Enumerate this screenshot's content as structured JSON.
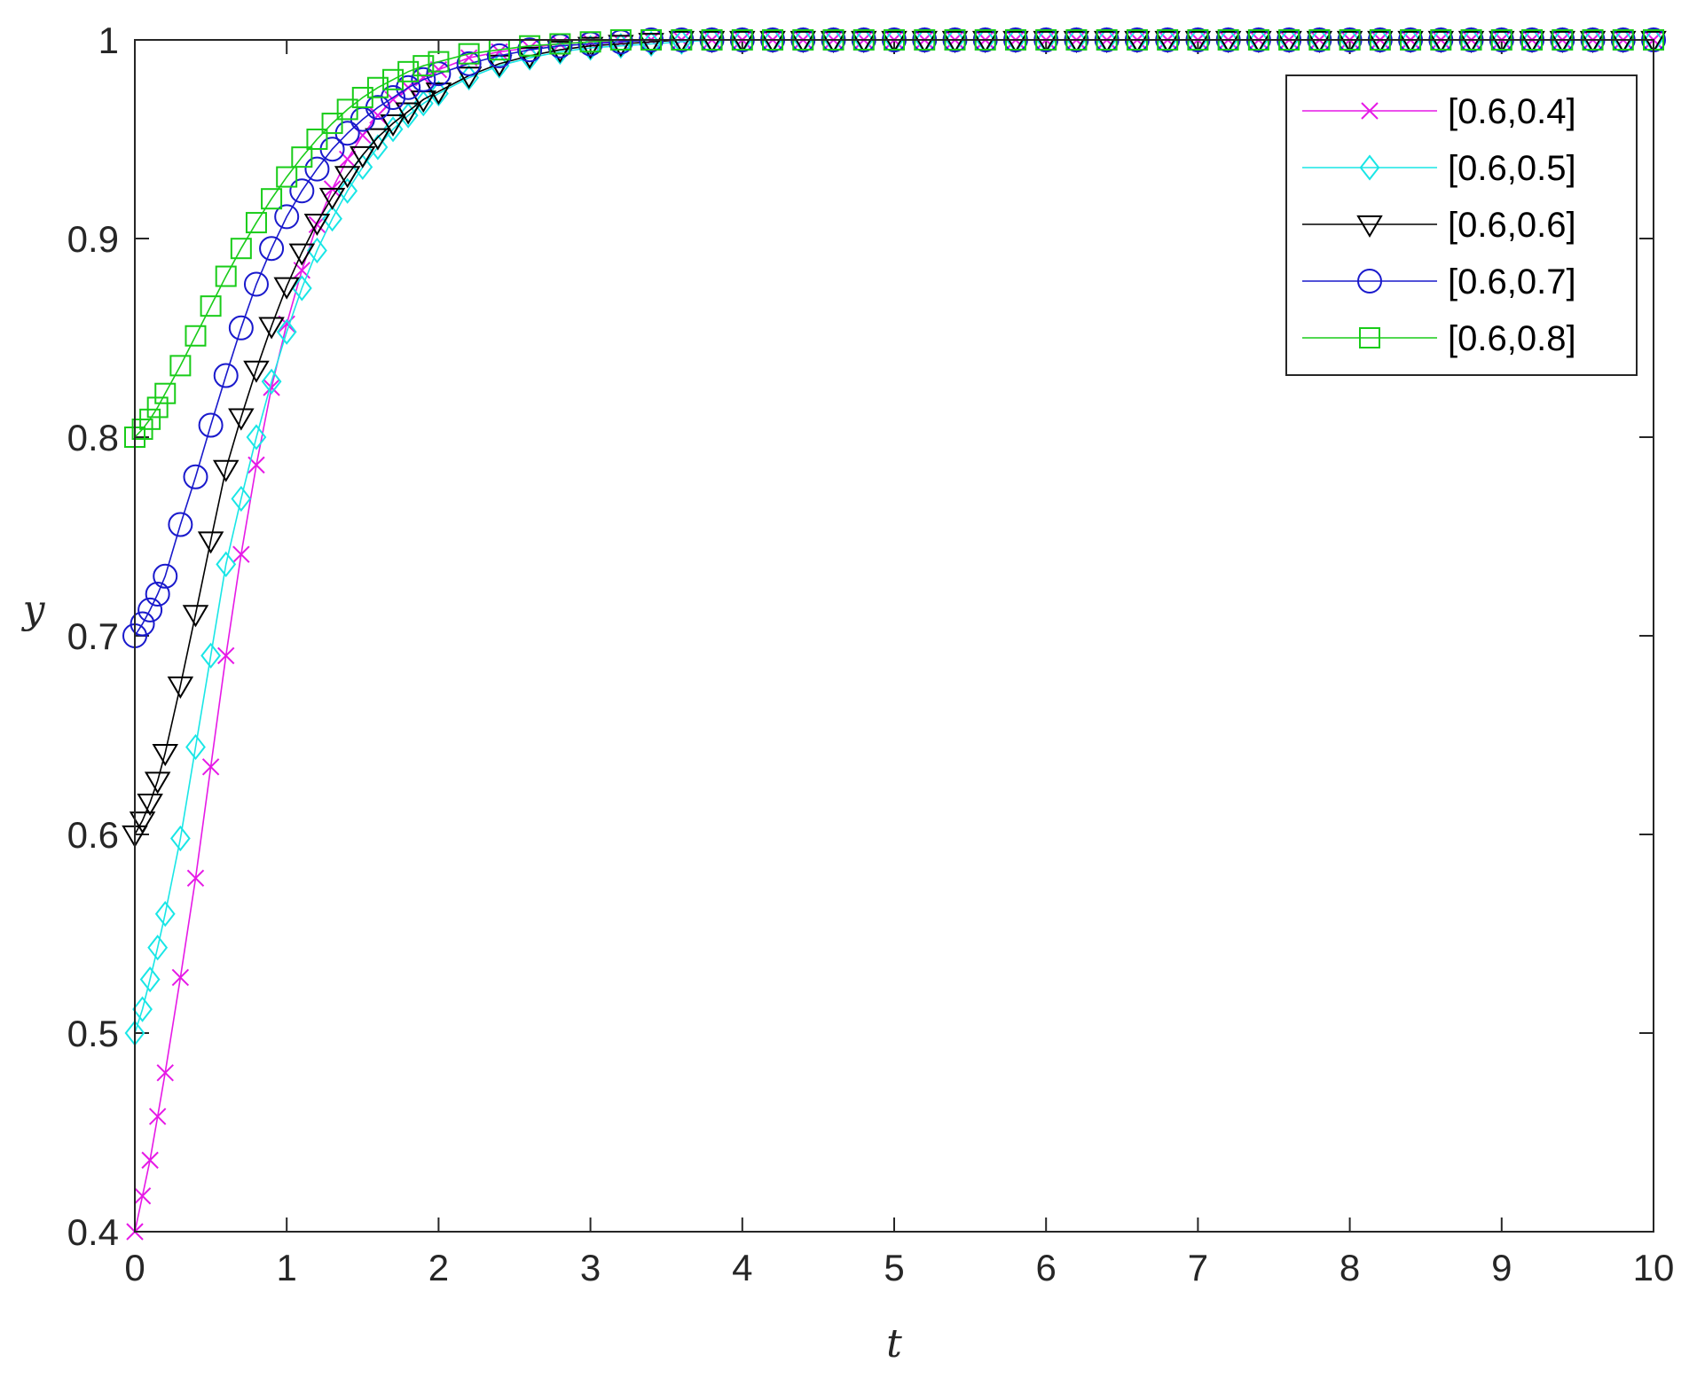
{
  "chart_data": {
    "type": "line",
    "title": "",
    "xlabel": "t",
    "ylabel": "y",
    "xlim": [
      0,
      10
    ],
    "ylim": [
      0.4,
      1
    ],
    "xticks": [
      "0",
      "1",
      "2",
      "3",
      "4",
      "5",
      "6",
      "7",
      "8",
      "9",
      "10"
    ],
    "yticks": [
      "0.4",
      "0.5",
      "0.6",
      "0.7",
      "0.8",
      "0.9",
      "1"
    ],
    "grid": false,
    "legend_position": "top-right",
    "x": [
      0,
      0.05,
      0.1,
      0.15,
      0.2,
      0.3,
      0.4,
      0.5,
      0.6,
      0.7,
      0.8,
      0.9,
      1.0,
      1.1,
      1.2,
      1.3,
      1.4,
      1.5,
      1.6,
      1.7,
      1.8,
      1.9,
      2.0,
      2.2,
      2.4,
      2.6,
      2.8,
      3.0,
      3.2,
      3.4,
      3.6,
      3.8,
      4.0,
      4.2,
      4.4,
      4.6,
      4.8,
      5.0,
      5.2,
      5.4,
      5.6,
      5.8,
      6.0,
      6.2,
      6.4,
      6.6,
      6.8,
      7.0,
      7.2,
      7.4,
      7.6,
      7.8,
      8.0,
      8.2,
      8.4,
      8.6,
      8.8,
      9.0,
      9.2,
      9.4,
      9.6,
      9.8,
      10.0
    ],
    "series": [
      {
        "name": "[0.6,0.4]",
        "color": "#e619e6",
        "marker": "x",
        "values": [
          0.4,
          0.418,
          0.436,
          0.458,
          0.48,
          0.528,
          0.578,
          0.634,
          0.69,
          0.741,
          0.786,
          0.825,
          0.857,
          0.884,
          0.907,
          0.925,
          0.94,
          0.952,
          0.962,
          0.97,
          0.976,
          0.981,
          0.985,
          0.991,
          0.994,
          0.996,
          0.998,
          0.999,
          0.999,
          1,
          1,
          1,
          1,
          1,
          1,
          1,
          1,
          1,
          1,
          1,
          1,
          1,
          1,
          1,
          1,
          1,
          1,
          1,
          1,
          1,
          1,
          1,
          1,
          1,
          1,
          1,
          1,
          1,
          1,
          1,
          1,
          1,
          1
        ]
      },
      {
        "name": "[0.6,0.5]",
        "color": "#19e6e6",
        "marker": "diamond",
        "values": [
          0.5,
          0.512,
          0.527,
          0.543,
          0.56,
          0.598,
          0.644,
          0.69,
          0.736,
          0.769,
          0.8,
          0.828,
          0.853,
          0.875,
          0.894,
          0.91,
          0.924,
          0.936,
          0.946,
          0.955,
          0.962,
          0.968,
          0.973,
          0.981,
          0.987,
          0.991,
          0.994,
          0.996,
          0.997,
          0.998,
          0.999,
          1,
          1,
          1,
          1,
          1,
          1,
          1,
          1,
          1,
          1,
          1,
          1,
          1,
          1,
          1,
          1,
          1,
          1,
          1,
          1,
          1,
          1,
          1,
          1,
          1,
          1,
          1,
          1,
          1,
          1,
          1,
          1
        ]
      },
      {
        "name": "[0.6,0.6]",
        "color": "#000000",
        "marker": "triangle-down",
        "values": [
          0.6,
          0.607,
          0.616,
          0.627,
          0.641,
          0.675,
          0.711,
          0.748,
          0.784,
          0.81,
          0.834,
          0.856,
          0.876,
          0.893,
          0.908,
          0.921,
          0.932,
          0.942,
          0.951,
          0.958,
          0.964,
          0.97,
          0.974,
          0.982,
          0.988,
          0.992,
          0.995,
          0.997,
          0.998,
          0.999,
          1,
          1,
          1,
          1,
          1,
          1,
          1,
          1,
          1,
          1,
          1,
          1,
          1,
          1,
          1,
          1,
          1,
          1,
          1,
          1,
          1,
          1,
          1,
          1,
          1,
          1,
          1,
          1,
          1,
          1,
          1,
          1,
          1
        ]
      },
      {
        "name": "[0.6,0.7]",
        "color": "#1919cc",
        "marker": "circle",
        "values": [
          0.7,
          0.706,
          0.713,
          0.721,
          0.73,
          0.756,
          0.78,
          0.806,
          0.831,
          0.855,
          0.877,
          0.895,
          0.911,
          0.924,
          0.935,
          0.945,
          0.953,
          0.96,
          0.966,
          0.971,
          0.976,
          0.98,
          0.983,
          0.988,
          0.992,
          0.995,
          0.997,
          0.998,
          0.999,
          1,
          1,
          1,
          1,
          1,
          1,
          1,
          1,
          1,
          1,
          1,
          1,
          1,
          1,
          1,
          1,
          1,
          1,
          1,
          1,
          1,
          1,
          1,
          1,
          1,
          1,
          1,
          1,
          1,
          1,
          1,
          1,
          1,
          1
        ]
      },
      {
        "name": "[0.6,0.8]",
        "color": "#19cc19",
        "marker": "square",
        "values": [
          0.8,
          0.804,
          0.809,
          0.815,
          0.822,
          0.836,
          0.851,
          0.866,
          0.881,
          0.895,
          0.908,
          0.92,
          0.931,
          0.941,
          0.95,
          0.958,
          0.965,
          0.971,
          0.976,
          0.98,
          0.984,
          0.987,
          0.989,
          0.993,
          0.995,
          0.997,
          0.998,
          0.999,
          1,
          1,
          1,
          1,
          1,
          1,
          1,
          1,
          1,
          1,
          1,
          1,
          1,
          1,
          1,
          1,
          1,
          1,
          1,
          1,
          1,
          1,
          1,
          1,
          1,
          1,
          1,
          1,
          1,
          1,
          1,
          1,
          1,
          1,
          1
        ]
      }
    ]
  }
}
